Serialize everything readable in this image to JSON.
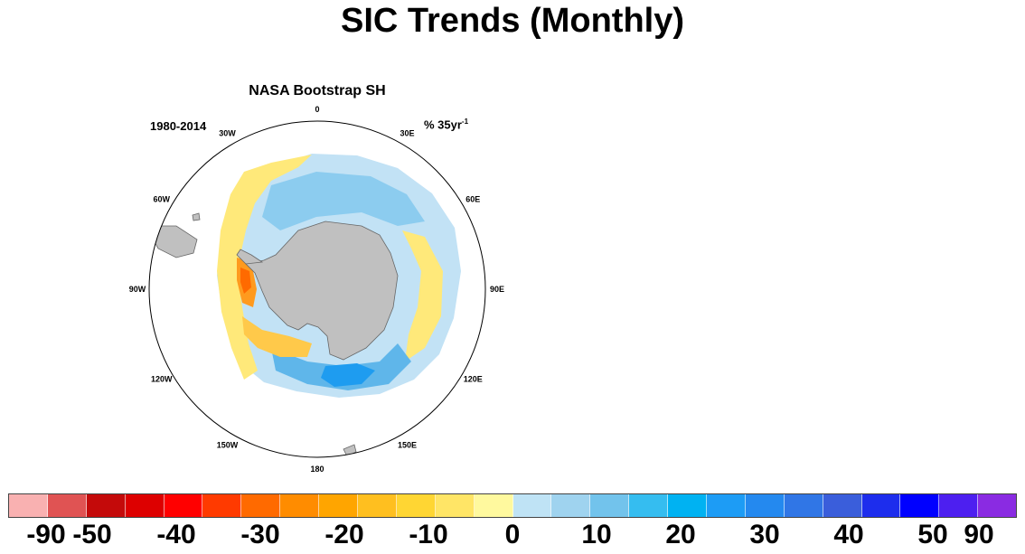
{
  "title": "SIC Trends (Monthly)",
  "panel": {
    "title": "NASA Bootstrap SH",
    "period": "1980-2014",
    "units_prefix": "% 35yr",
    "units_exp": "-1",
    "longitudes": [
      "0",
      "30E",
      "60E",
      "90E",
      "120E",
      "150E",
      "180",
      "150W",
      "120W",
      "90W",
      "60W",
      "30W"
    ]
  },
  "colorbar": {
    "colors": [
      "#f9b1b1",
      "#e05353",
      "#c40a0a",
      "#dd0000",
      "#ff0000",
      "#ff3a00",
      "#ff6a00",
      "#ff8c00",
      "#ffa500",
      "#ffbf1f",
      "#ffd633",
      "#ffe566",
      "#fff99e",
      "#bfe3f5",
      "#9fd3ef",
      "#72c3ec",
      "#35bdf0",
      "#00b2f2",
      "#1d9cf5",
      "#2489ef",
      "#3076e6",
      "#3a5edb",
      "#1d2ded",
      "#0000ff",
      "#4d1ff0",
      "#8a2be2"
    ],
    "labels": [
      "-90",
      "-50",
      "-40",
      "-30",
      "-20",
      "-10",
      "0",
      "10",
      "20",
      "30",
      "40",
      "50",
      "90"
    ]
  }
}
